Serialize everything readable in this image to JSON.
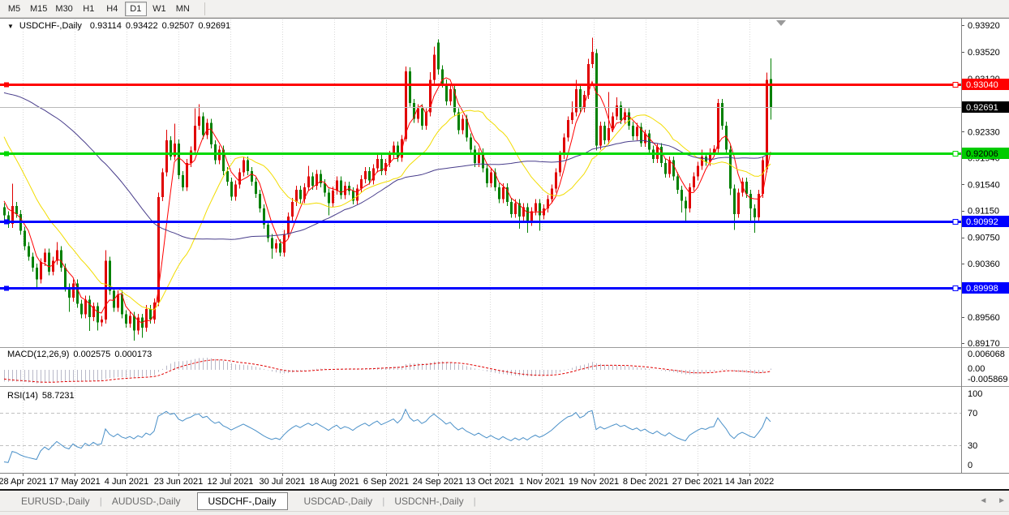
{
  "toolbar": {
    "timeframes": [
      {
        "label": "M5",
        "active": false
      },
      {
        "label": "M15",
        "active": false
      },
      {
        "label": "M30",
        "active": false
      },
      {
        "label": "H1",
        "active": false
      },
      {
        "label": "H4",
        "active": false
      },
      {
        "label": "D1",
        "active": true
      },
      {
        "label": "W1",
        "active": false
      },
      {
        "label": "MN",
        "active": false
      }
    ]
  },
  "icons": {
    "dropdown": "▼",
    "scroll_left": "◄",
    "scroll_right": "►",
    "shift_marker": "▼"
  },
  "chart": {
    "title": "USDCHF-,Daily",
    "ohlc": {
      "open": "0.93114",
      "high": "0.93422",
      "low": "0.92507",
      "close": "0.92691"
    }
  },
  "chart_data": {
    "type": "candlestick",
    "symbol": "USDCHF",
    "timeframe": "Daily",
    "colors": {
      "bull": "#e00000",
      "bear": "#008000",
      "grid": "#d9d9d9",
      "separator": "#9a9a9a",
      "current_price_line": "#b9b9b9",
      "axis_border": "#828282"
    },
    "x_labels": [
      "28 Apr 2021",
      "17 May 2021",
      "4 Jun 2021",
      "23 Jun 2021",
      "12 Jul 2021",
      "30 Jul 2021",
      "18 Aug 2021",
      "6 Sep 2021",
      "24 Sep 2021",
      "13 Oct 2021",
      "1 Nov 2021",
      "19 Nov 2021",
      "8 Dec 2021",
      "27 Dec 2021",
      "14 Jan 2022"
    ],
    "y_axis_labels": [
      "0.93920",
      "0.93520",
      "0.93120",
      "0.92330",
      "0.91940",
      "0.91540",
      "0.91150",
      "0.90750",
      "0.90360",
      "0.89560",
      "0.89170"
    ],
    "current_price": {
      "price": 0.92691,
      "label": "0.92691",
      "badge_bg": "#000000",
      "badge_fg": "#ffffff"
    },
    "horizontal_lines": [
      {
        "price": 0.9304,
        "label": "0.93040",
        "color": "#ff0000",
        "badge_bg": "#ff0000",
        "badge_fg": "#ffffff",
        "width": 3
      },
      {
        "price": 0.92006,
        "label": "0.92006",
        "color": "#00d900",
        "badge_bg": "#00cc00",
        "badge_fg": "#000000",
        "width": 3
      },
      {
        "price": 0.90992,
        "label": "0.90992",
        "color": "#0000ff",
        "badge_bg": "#0000ff",
        "badge_fg": "#ffffff",
        "width": 3
      },
      {
        "price": 0.89998,
        "label": "0.89998",
        "color": "#0000ff",
        "badge_bg": "#0000ff",
        "badge_fg": "#ffffff",
        "width": 3
      }
    ],
    "moving_averages": [
      {
        "period": 5,
        "color": "#ff0000"
      },
      {
        "period": 20,
        "color": "#f2dc00"
      },
      {
        "period": 60,
        "color": "#483d8b"
      }
    ],
    "indicators": [
      {
        "name": "MACD",
        "label": "MACD(12,26,9)",
        "values": [
          "0.002575",
          "0.000173"
        ],
        "axis_labels": [
          "0.006068",
          "0.00",
          "-0.005869"
        ],
        "histogram_color": "#b9b9c8",
        "signal_color": "#e00000"
      },
      {
        "name": "RSI",
        "label": "RSI(14)",
        "value": "58.7231",
        "axis_labels": [
          "100",
          "70",
          "30",
          "0"
        ],
        "levels": [
          70,
          30
        ],
        "line_color": "#4a90c8"
      }
    ],
    "prehistory_closes": [
      0.918,
      0.9188,
      0.9195,
      0.9203,
      0.921,
      0.9218,
      0.9225,
      0.9233,
      0.924,
      0.9248,
      0.9255,
      0.9263,
      0.927,
      0.9278,
      0.9285,
      0.9293,
      0.93,
      0.9308,
      0.9315,
      0.9323,
      0.933,
      0.9338,
      0.9345,
      0.9353,
      0.9361,
      0.9368,
      0.9376,
      0.9383,
      0.9391,
      0.9398,
      0.9406,
      0.9413,
      0.9421,
      0.9429,
      0.9437,
      0.9424,
      0.9411,
      0.9398,
      0.9386,
      0.9373,
      0.936,
      0.9347,
      0.9334,
      0.9321,
      0.9309,
      0.9296,
      0.9283,
      0.927,
      0.9257,
      0.9244,
      0.9231,
      0.9219,
      0.9206,
      0.9193,
      0.918,
      0.9167,
      0.9154,
      0.9141,
      0.9129,
      0.9115
    ],
    "candles": [
      [
        0.912,
        0.9126,
        0.9102,
        0.9108
      ],
      [
        0.9108,
        0.9114,
        0.9089,
        0.9095
      ],
      [
        0.9095,
        0.9155,
        0.9089,
        0.9122
      ],
      [
        0.9122,
        0.9128,
        0.9104,
        0.911
      ],
      [
        0.911,
        0.9116,
        0.9079,
        0.9085
      ],
      [
        0.9085,
        0.9091,
        0.9056,
        0.9062
      ],
      [
        0.9062,
        0.9068,
        0.904,
        0.9046
      ],
      [
        0.9046,
        0.9052,
        0.9024,
        0.903
      ],
      [
        0.903,
        0.9036,
        0.9001,
        0.9012
      ],
      [
        0.9012,
        0.9044,
        0.9006,
        0.9038
      ],
      [
        0.9038,
        0.9058,
        0.9032,
        0.9052
      ],
      [
        0.9052,
        0.9058,
        0.9018,
        0.9024
      ],
      [
        0.9024,
        0.9046,
        0.9018,
        0.904
      ],
      [
        0.904,
        0.9068,
        0.9034,
        0.9056
      ],
      [
        0.9056,
        0.9062,
        0.9024,
        0.903
      ],
      [
        0.903,
        0.9036,
        0.8994,
        0.9
      ],
      [
        0.9,
        0.9006,
        0.8964,
        0.8985
      ],
      [
        0.8985,
        0.9012,
        0.8979,
        0.9006
      ],
      [
        0.9006,
        0.9012,
        0.897,
        0.8976
      ],
      [
        0.8976,
        0.8982,
        0.8954,
        0.896
      ],
      [
        0.896,
        0.8988,
        0.8954,
        0.8982
      ],
      [
        0.8982,
        0.8988,
        0.8935,
        0.8956
      ],
      [
        0.8956,
        0.8978,
        0.895,
        0.8972
      ],
      [
        0.8972,
        0.8978,
        0.8936,
        0.8948
      ],
      [
        0.8948,
        0.8958,
        0.8942,
        0.8952
      ],
      [
        0.8952,
        0.9056,
        0.8946,
        0.904
      ],
      [
        0.904,
        0.9046,
        0.8989,
        0.8995
      ],
      [
        0.8995,
        0.9001,
        0.8964,
        0.897
      ],
      [
        0.897,
        0.8996,
        0.8964,
        0.899
      ],
      [
        0.899,
        0.8996,
        0.8954,
        0.896
      ],
      [
        0.896,
        0.8966,
        0.894,
        0.8946
      ],
      [
        0.8946,
        0.8964,
        0.894,
        0.8958
      ],
      [
        0.8958,
        0.8964,
        0.8921,
        0.8936
      ],
      [
        0.8936,
        0.8961,
        0.893,
        0.8955
      ],
      [
        0.8955,
        0.8961,
        0.8925,
        0.894
      ],
      [
        0.894,
        0.8974,
        0.8934,
        0.8968
      ],
      [
        0.8968,
        0.8974,
        0.8946,
        0.8952
      ],
      [
        0.8952,
        0.8984,
        0.8946,
        0.8978
      ],
      [
        0.8978,
        0.9142,
        0.8972,
        0.9135
      ],
      [
        0.9135,
        0.9178,
        0.9129,
        0.9172
      ],
      [
        0.9172,
        0.9236,
        0.9166,
        0.922
      ],
      [
        0.922,
        0.9226,
        0.919,
        0.9196
      ],
      [
        0.9196,
        0.9245,
        0.919,
        0.9215
      ],
      [
        0.9215,
        0.9221,
        0.9162,
        0.9168
      ],
      [
        0.9168,
        0.9174,
        0.9144,
        0.915
      ],
      [
        0.915,
        0.9192,
        0.9144,
        0.9186
      ],
      [
        0.9186,
        0.9211,
        0.918,
        0.9205
      ],
      [
        0.9205,
        0.9268,
        0.9199,
        0.9242
      ],
      [
        0.9242,
        0.9274,
        0.9236,
        0.9256
      ],
      [
        0.9256,
        0.9262,
        0.9222,
        0.9228
      ],
      [
        0.9228,
        0.9252,
        0.9222,
        0.9246
      ],
      [
        0.9246,
        0.9252,
        0.9208,
        0.9214
      ],
      [
        0.9214,
        0.922,
        0.9184,
        0.919
      ],
      [
        0.919,
        0.9212,
        0.9184,
        0.9206
      ],
      [
        0.9206,
        0.9212,
        0.9168,
        0.9174
      ],
      [
        0.9174,
        0.918,
        0.9152,
        0.9158
      ],
      [
        0.9158,
        0.9164,
        0.913,
        0.9136
      ],
      [
        0.9136,
        0.916,
        0.913,
        0.9154
      ],
      [
        0.9154,
        0.9178,
        0.9148,
        0.9172
      ],
      [
        0.9172,
        0.9196,
        0.9166,
        0.919
      ],
      [
        0.919,
        0.9196,
        0.9168,
        0.9174
      ],
      [
        0.9174,
        0.918,
        0.9152,
        0.9158
      ],
      [
        0.9158,
        0.9164,
        0.9134,
        0.914
      ],
      [
        0.914,
        0.9146,
        0.9112,
        0.9118
      ],
      [
        0.9118,
        0.9124,
        0.9088,
        0.9094
      ],
      [
        0.9094,
        0.91,
        0.9068,
        0.9074
      ],
      [
        0.9074,
        0.908,
        0.9043,
        0.9058
      ],
      [
        0.9058,
        0.9072,
        0.9052,
        0.9066
      ],
      [
        0.9066,
        0.9072,
        0.9047,
        0.9052
      ],
      [
        0.9052,
        0.9086,
        0.9046,
        0.908
      ],
      [
        0.908,
        0.9112,
        0.9074,
        0.9106
      ],
      [
        0.9106,
        0.9134,
        0.91,
        0.9128
      ],
      [
        0.9128,
        0.9152,
        0.9122,
        0.9146
      ],
      [
        0.9146,
        0.9152,
        0.9126,
        0.9132
      ],
      [
        0.9132,
        0.9156,
        0.9126,
        0.915
      ],
      [
        0.915,
        0.9182,
        0.9144,
        0.9166
      ],
      [
        0.9166,
        0.9172,
        0.9146,
        0.9152
      ],
      [
        0.9152,
        0.9176,
        0.9146,
        0.917
      ],
      [
        0.917,
        0.9176,
        0.915,
        0.9156
      ],
      [
        0.9156,
        0.9162,
        0.9136,
        0.9142
      ],
      [
        0.9142,
        0.9148,
        0.9108,
        0.9126
      ],
      [
        0.9126,
        0.9151,
        0.912,
        0.9145
      ],
      [
        0.9145,
        0.9166,
        0.9139,
        0.916
      ],
      [
        0.916,
        0.9166,
        0.9132,
        0.9138
      ],
      [
        0.9138,
        0.9158,
        0.9132,
        0.9152
      ],
      [
        0.9152,
        0.9158,
        0.9138,
        0.9144
      ],
      [
        0.9144,
        0.915,
        0.9124,
        0.913
      ],
      [
        0.913,
        0.9154,
        0.9124,
        0.9148
      ],
      [
        0.9148,
        0.9168,
        0.9142,
        0.9162
      ],
      [
        0.9162,
        0.918,
        0.9156,
        0.9174
      ],
      [
        0.9174,
        0.918,
        0.9154,
        0.916
      ],
      [
        0.916,
        0.9184,
        0.9154,
        0.9178
      ],
      [
        0.9178,
        0.9198,
        0.9172,
        0.9192
      ],
      [
        0.9192,
        0.9198,
        0.9168,
        0.9174
      ],
      [
        0.9174,
        0.9192,
        0.9168,
        0.9186
      ],
      [
        0.9186,
        0.9204,
        0.918,
        0.9198
      ],
      [
        0.9198,
        0.9218,
        0.9192,
        0.9212
      ],
      [
        0.9212,
        0.9218,
        0.9188,
        0.9194
      ],
      [
        0.9194,
        0.9228,
        0.9188,
        0.9222
      ],
      [
        0.9222,
        0.933,
        0.9218,
        0.9323
      ],
      [
        0.9323,
        0.9329,
        0.927,
        0.9276
      ],
      [
        0.9276,
        0.9282,
        0.9246,
        0.9252
      ],
      [
        0.9252,
        0.9274,
        0.9246,
        0.9268
      ],
      [
        0.9268,
        0.9274,
        0.9236,
        0.9242
      ],
      [
        0.9242,
        0.9268,
        0.9236,
        0.9262
      ],
      [
        0.9262,
        0.9322,
        0.9256,
        0.931
      ],
      [
        0.931,
        0.936,
        0.9304,
        0.9348
      ],
      [
        0.9366,
        0.9371,
        0.9318,
        0.9326
      ],
      [
        0.9326,
        0.9332,
        0.9299,
        0.9305
      ],
      [
        0.9305,
        0.9311,
        0.9272,
        0.9278
      ],
      [
        0.9278,
        0.9302,
        0.9272,
        0.9296
      ],
      [
        0.9296,
        0.9302,
        0.9256,
        0.9262
      ],
      [
        0.9262,
        0.9268,
        0.9229,
        0.9235
      ],
      [
        0.9235,
        0.9258,
        0.9229,
        0.9252
      ],
      [
        0.9252,
        0.9258,
        0.9218,
        0.9224
      ],
      [
        0.9224,
        0.923,
        0.92,
        0.9206
      ],
      [
        0.9206,
        0.9212,
        0.918,
        0.9186
      ],
      [
        0.9186,
        0.9208,
        0.918,
        0.9202
      ],
      [
        0.9202,
        0.9208,
        0.9172,
        0.9178
      ],
      [
        0.9178,
        0.9184,
        0.915,
        0.9156
      ],
      [
        0.9156,
        0.9178,
        0.915,
        0.9172
      ],
      [
        0.9172,
        0.9178,
        0.9144,
        0.915
      ],
      [
        0.915,
        0.9156,
        0.9126,
        0.9132
      ],
      [
        0.9132,
        0.9156,
        0.9126,
        0.915
      ],
      [
        0.915,
        0.9156,
        0.9122,
        0.9128
      ],
      [
        0.9128,
        0.9134,
        0.9104,
        0.911
      ],
      [
        0.911,
        0.9132,
        0.9104,
        0.9126
      ],
      [
        0.9126,
        0.9132,
        0.9088,
        0.9106
      ],
      [
        0.9106,
        0.9126,
        0.91,
        0.912
      ],
      [
        0.912,
        0.9126,
        0.9082,
        0.9098
      ],
      [
        0.9098,
        0.912,
        0.9092,
        0.9114
      ],
      [
        0.9114,
        0.9132,
        0.9108,
        0.9126
      ],
      [
        0.9126,
        0.9132,
        0.9085,
        0.9108
      ],
      [
        0.9108,
        0.9124,
        0.9102,
        0.9118
      ],
      [
        0.9118,
        0.9138,
        0.9112,
        0.9132
      ],
      [
        0.9132,
        0.9154,
        0.9126,
        0.9148
      ],
      [
        0.9148,
        0.9178,
        0.9142,
        0.9172
      ],
      [
        0.9172,
        0.9204,
        0.9166,
        0.9198
      ],
      [
        0.9198,
        0.923,
        0.9192,
        0.9224
      ],
      [
        0.9224,
        0.9256,
        0.9218,
        0.925
      ],
      [
        0.925,
        0.9278,
        0.9244,
        0.9262
      ],
      [
        0.9262,
        0.931,
        0.9256,
        0.9296
      ],
      [
        0.9296,
        0.9302,
        0.9262,
        0.9268
      ],
      [
        0.9268,
        0.9294,
        0.9262,
        0.9288
      ],
      [
        0.9288,
        0.9342,
        0.9282,
        0.9334
      ],
      [
        0.9334,
        0.9373,
        0.9328,
        0.9352
      ],
      [
        0.935,
        0.9356,
        0.9205,
        0.9212
      ],
      [
        0.9212,
        0.9248,
        0.9206,
        0.9242
      ],
      [
        0.9242,
        0.9248,
        0.9214,
        0.922
      ],
      [
        0.922,
        0.9292,
        0.9214,
        0.9238
      ],
      [
        0.9238,
        0.9262,
        0.9232,
        0.9256
      ],
      [
        0.9256,
        0.9284,
        0.925,
        0.9272
      ],
      [
        0.9272,
        0.9278,
        0.9244,
        0.925
      ],
      [
        0.925,
        0.9268,
        0.9244,
        0.9262
      ],
      [
        0.9262,
        0.9268,
        0.9236,
        0.9242
      ],
      [
        0.9242,
        0.9248,
        0.922,
        0.9226
      ],
      [
        0.9226,
        0.9246,
        0.922,
        0.924
      ],
      [
        0.924,
        0.9246,
        0.921,
        0.9216
      ],
      [
        0.9216,
        0.9236,
        0.921,
        0.923
      ],
      [
        0.923,
        0.9236,
        0.92,
        0.9206
      ],
      [
        0.9206,
        0.9212,
        0.9186,
        0.9192
      ],
      [
        0.9192,
        0.9216,
        0.9186,
        0.921
      ],
      [
        0.921,
        0.9216,
        0.918,
        0.9186
      ],
      [
        0.9186,
        0.9192,
        0.9164,
        0.917
      ],
      [
        0.917,
        0.9196,
        0.9164,
        0.919
      ],
      [
        0.919,
        0.9196,
        0.916,
        0.9166
      ],
      [
        0.9166,
        0.9172,
        0.914,
        0.9146
      ],
      [
        0.9146,
        0.9152,
        0.9112,
        0.913
      ],
      [
        0.913,
        0.9136,
        0.9098,
        0.9118
      ],
      [
        0.9118,
        0.9156,
        0.9112,
        0.915
      ],
      [
        0.915,
        0.9172,
        0.9144,
        0.9166
      ],
      [
        0.9166,
        0.9188,
        0.916,
        0.9182
      ],
      [
        0.9182,
        0.9206,
        0.9176,
        0.9196
      ],
      [
        0.9196,
        0.9202,
        0.9182,
        0.9188
      ],
      [
        0.9188,
        0.9208,
        0.9182,
        0.9202
      ],
      [
        0.9202,
        0.9213,
        0.9196,
        0.9207
      ],
      [
        0.9207,
        0.9282,
        0.9201,
        0.9276
      ],
      [
        0.9276,
        0.9282,
        0.9236,
        0.9242
      ],
      [
        0.9242,
        0.9248,
        0.92,
        0.9206
      ],
      [
        0.9206,
        0.9212,
        0.9138,
        0.9148
      ],
      [
        0.9148,
        0.9154,
        0.9086,
        0.911
      ],
      [
        0.911,
        0.9148,
        0.9104,
        0.9142
      ],
      [
        0.9142,
        0.9164,
        0.9136,
        0.9158
      ],
      [
        0.9158,
        0.9164,
        0.9134,
        0.914
      ],
      [
        0.914,
        0.9146,
        0.91,
        0.9118
      ],
      [
        0.9118,
        0.9124,
        0.9082,
        0.9105
      ],
      [
        0.9105,
        0.9146,
        0.9099,
        0.914
      ],
      [
        0.914,
        0.9196,
        0.9134,
        0.919
      ],
      [
        0.9177,
        0.9321,
        0.9172,
        0.931
      ],
      [
        0.93114,
        0.93422,
        0.92507,
        0.92691
      ]
    ]
  },
  "tabs": {
    "items": [
      {
        "label": "EURUSD-,Daily",
        "active": false
      },
      {
        "label": "AUDUSD-,Daily",
        "active": false
      },
      {
        "label": "USDCHF-,Daily",
        "active": true
      },
      {
        "label": "USDCAD-,Daily",
        "active": false
      },
      {
        "label": "USDCNH-,Daily",
        "active": false
      }
    ]
  }
}
